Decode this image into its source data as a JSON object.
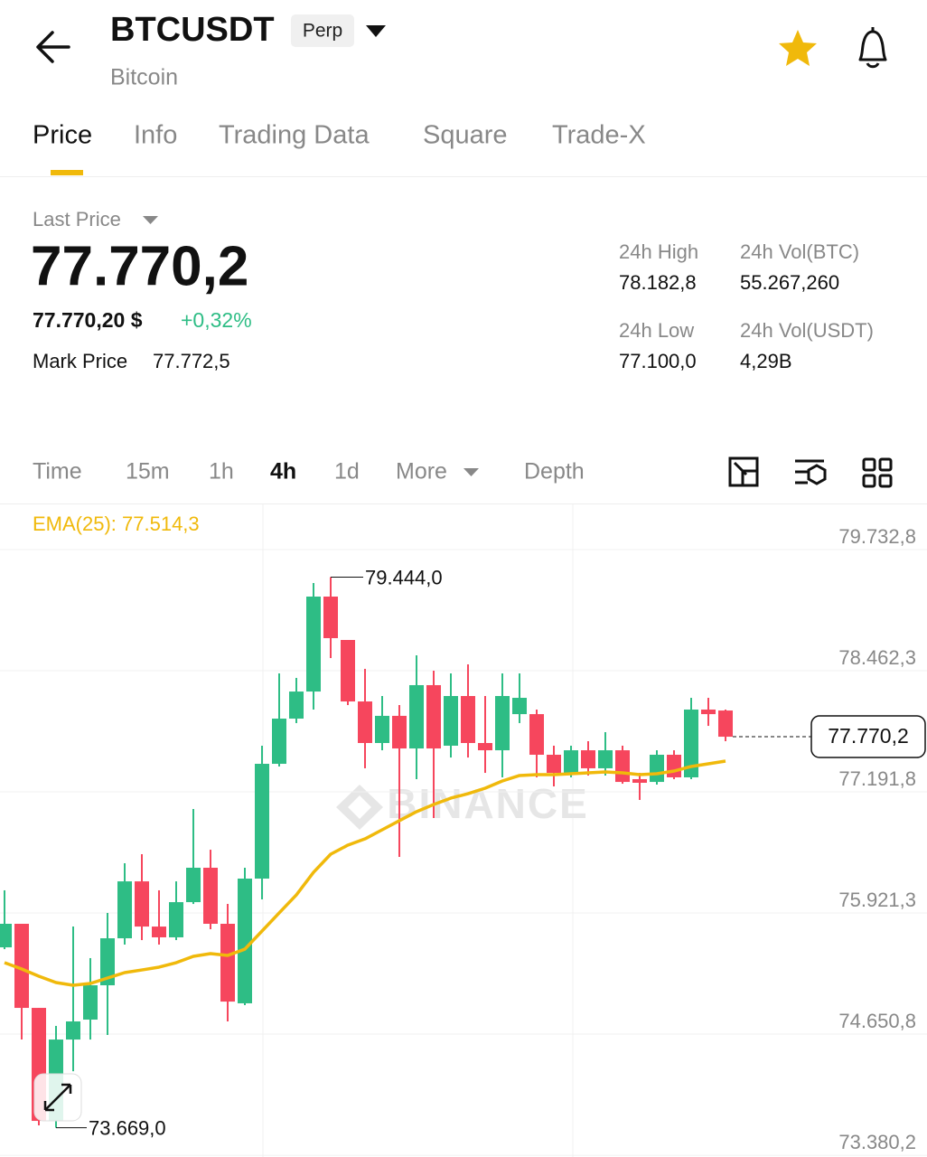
{
  "header": {
    "title": "BTCUSDT",
    "badge": "Perp",
    "subtitle": "Bitcoin"
  },
  "tabs": [
    "Price",
    "Info",
    "Trading Data",
    "Square",
    "Trade-X"
  ],
  "summary": {
    "last_price_label": "Last Price",
    "last_price": "77.770,2",
    "usd_price": "77.770,20 $",
    "change": "+0,32%",
    "mark_price_label": "Mark Price",
    "mark_price": "77.772,5"
  },
  "stats": [
    {
      "label": "24h High",
      "value": "78.182,8"
    },
    {
      "label": "24h Vol(BTC)",
      "value": "55.267,260"
    },
    {
      "label": "24h Low",
      "value": "77.100,0"
    },
    {
      "label": "24h Vol(USDT)",
      "value": "4,29B"
    }
  ],
  "intervals": [
    "Time",
    "15m",
    "1h",
    "4h",
    "1d",
    "More",
    "Depth"
  ],
  "chart_data": {
    "type": "candlestick",
    "ylim": [
      73362,
      80207
    ],
    "yticks": [
      {
        "value": 79732.8,
        "label": "79.732,8"
      },
      {
        "value": 78462.3,
        "label": "78.462,3"
      },
      {
        "value": 77191.8,
        "label": "77.191,8"
      },
      {
        "value": 75921.3,
        "label": "75.921,3"
      },
      {
        "value": 74650.8,
        "label": "74.650,8"
      },
      {
        "value": 73380.2,
        "label": "73.380,2"
      }
    ],
    "grid": true,
    "up_color": "#2ebd85",
    "down_color": "#f6465d",
    "watermark": "BINANCE",
    "open": [
      75561,
      75808,
      74926,
      73741,
      74594,
      74803,
      75163,
      75656,
      76253,
      75779,
      75666,
      76035,
      76396,
      75808,
      74974,
      76282,
      77486,
      77960,
      78244,
      79240,
      78785,
      78140,
      77704,
      77989,
      77647,
      78311,
      77676,
      78197,
      77704,
      77628,
      78007,
      78007,
      77581,
      77391,
      77628,
      77439,
      77628,
      77325,
      77296,
      77581,
      77344,
      78055,
      78045
    ],
    "high": [
      76159,
      75808,
      74926,
      74737,
      75779,
      75448,
      75922,
      76443,
      76538,
      76159,
      76253,
      77012,
      76585,
      76016,
      76396,
      77676,
      78434,
      78387,
      79382,
      79444,
      78785,
      78482,
      78197,
      78102,
      78624,
      78463,
      78434,
      78529,
      78197,
      78434,
      78434,
      78055,
      77676,
      77676,
      77723,
      77818,
      77676,
      77391,
      77628,
      77628,
      78178,
      78178,
      78055
    ],
    "low": [
      75542,
      74594,
      73694,
      73669,
      74262,
      74594,
      74642,
      75590,
      75637,
      75590,
      75637,
      76016,
      75751,
      74784,
      74955,
      76064,
      77458,
      77913,
      78055,
      78595,
      78102,
      77439,
      77628,
      76509,
      77325,
      76917,
      77552,
      77552,
      77391,
      77344,
      77913,
      77344,
      77249,
      77344,
      77363,
      77363,
      77277,
      77107,
      77268,
      77325,
      77325,
      77884,
      77723
    ],
    "close": [
      75808,
      74926,
      73741,
      74594,
      74784,
      75163,
      75656,
      76253,
      75779,
      75666,
      76035,
      76396,
      75808,
      74992,
      76282,
      77486,
      77960,
      78244,
      79240,
      78804,
      78140,
      77704,
      77989,
      77647,
      78311,
      77647,
      78197,
      77704,
      77628,
      78197,
      78178,
      77581,
      77391,
      77628,
      77439,
      77628,
      77296,
      77287,
      77581,
      77344,
      78055,
      78007,
      77770.2
    ],
    "ema": {
      "label": "EMA(25): 77.514,3",
      "color": "#f0b90b",
      "values": [
        75400,
        75334,
        75258,
        75192,
        75163,
        75182,
        75239,
        75296,
        75324,
        75353,
        75400,
        75467,
        75495,
        75476,
        75542,
        75732,
        75922,
        76111,
        76348,
        76538,
        76633,
        76699,
        76794,
        76889,
        76984,
        77059,
        77126,
        77173,
        77230,
        77306,
        77363,
        77372,
        77372,
        77382,
        77391,
        77401,
        77391,
        77372,
        77382,
        77410,
        77458,
        77486,
        77514.3
      ]
    },
    "high_marker": {
      "value": 79444,
      "label": "79.444,0"
    },
    "low_marker": {
      "value": 73669,
      "label": "73.669,0"
    },
    "price_line": {
      "value": 77770.2,
      "label": "77.770,2"
    }
  }
}
